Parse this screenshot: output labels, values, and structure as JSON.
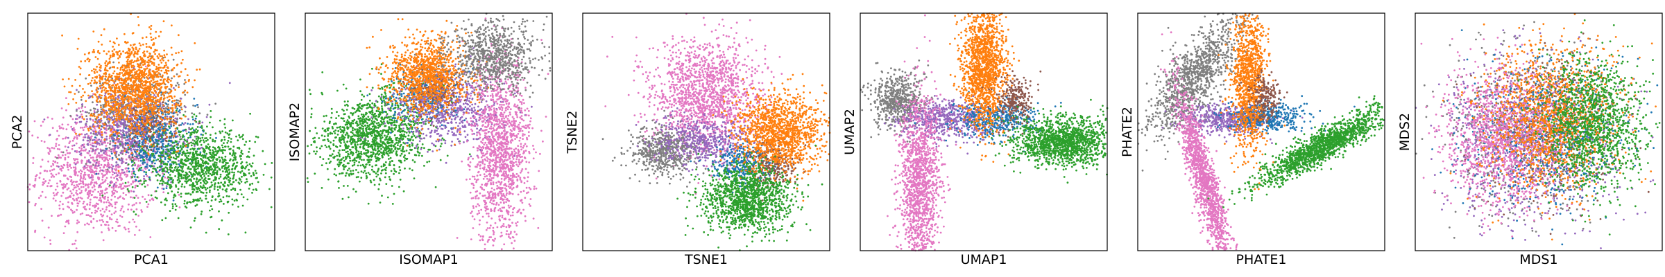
{
  "figure": {
    "background": "#ffffff"
  },
  "series_colors": {
    "blue": "#1f77b4",
    "orange": "#ff7f0e",
    "green": "#2ca02c",
    "brown": "#8c564b",
    "pink": "#e377c2",
    "gray": "#7f7f7f",
    "purple": "#9467bd"
  },
  "chart_data": [
    {
      "type": "scatter",
      "xlabel": "PCA1",
      "ylabel": "PCA2",
      "ticks": "none",
      "xlim": [
        0,
        10
      ],
      "ylim": [
        0,
        10
      ],
      "clusters": [
        {
          "color": "pink",
          "cx": 2.8,
          "cy": 3.3,
          "sx": 1.2,
          "sy": 1.3,
          "n": 1100
        },
        {
          "color": "gray",
          "cx": 4.4,
          "cy": 5.8,
          "sx": 1.0,
          "sy": 0.9,
          "n": 600
        },
        {
          "color": "purple",
          "cx": 4.2,
          "cy": 5.1,
          "sx": 1.1,
          "sy": 0.9,
          "n": 700
        },
        {
          "color": "blue",
          "cx": 5.2,
          "cy": 4.6,
          "sx": 0.8,
          "sy": 0.8,
          "n": 400
        },
        {
          "color": "green",
          "cx": 7.0,
          "cy": 3.5,
          "sx": 1.1,
          "sy": 0.8,
          "n": 1100
        },
        {
          "color": "brown",
          "cx": 5.0,
          "cy": 5.2,
          "sx": 0.6,
          "sy": 0.5,
          "n": 120
        },
        {
          "color": "orange",
          "cx": 4.3,
          "cy": 6.9,
          "sx": 0.9,
          "sy": 1.0,
          "n": 1400
        }
      ]
    },
    {
      "type": "scatter",
      "xlabel": "ISOMAP1",
      "ylabel": "ISOMAP2",
      "ticks": "none",
      "xlim": [
        0,
        10
      ],
      "ylim": [
        0,
        10
      ],
      "clusters": [
        {
          "color": "green",
          "cx": 2.8,
          "cy": 4.8,
          "sx": 1.1,
          "sy": 0.9,
          "n": 1300,
          "rot": 30
        },
        {
          "color": "blue",
          "cx": 4.8,
          "cy": 6.5,
          "sx": 0.7,
          "sy": 0.6,
          "n": 300
        },
        {
          "color": "purple",
          "cx": 5.8,
          "cy": 6.0,
          "sx": 1.1,
          "sy": 0.8,
          "n": 700
        },
        {
          "color": "pink",
          "cx": 7.9,
          "cy": 4.2,
          "sx": 0.6,
          "sy": 1.9,
          "n": 1400
        },
        {
          "color": "brown",
          "cx": 5.2,
          "cy": 6.8,
          "sx": 0.5,
          "sy": 0.5,
          "n": 150
        },
        {
          "color": "orange",
          "cx": 5.0,
          "cy": 7.4,
          "sx": 0.8,
          "sy": 0.8,
          "n": 1100
        },
        {
          "color": "gray",
          "cx": 7.6,
          "cy": 8.2,
          "sx": 0.9,
          "sy": 0.7,
          "n": 800
        }
      ]
    },
    {
      "type": "scatter",
      "xlabel": "TSNE1",
      "ylabel": "TSNE2",
      "ticks": "none",
      "xlim": [
        0,
        10
      ],
      "ylim": [
        0,
        10
      ],
      "clusters": [
        {
          "color": "pink",
          "cx": 5.0,
          "cy": 6.5,
          "sx": 1.1,
          "sy": 1.2,
          "n": 1500
        },
        {
          "color": "gray",
          "cx": 3.3,
          "cy": 4.2,
          "sx": 0.7,
          "sy": 0.5,
          "n": 600
        },
        {
          "color": "purple",
          "cx": 5.0,
          "cy": 4.6,
          "sx": 1.0,
          "sy": 0.5,
          "n": 500
        },
        {
          "color": "blue",
          "cx": 6.5,
          "cy": 3.6,
          "sx": 0.6,
          "sy": 0.4,
          "n": 300
        },
        {
          "color": "brown",
          "cx": 7.7,
          "cy": 3.6,
          "sx": 0.5,
          "sy": 0.5,
          "n": 250
        },
        {
          "color": "orange",
          "cx": 8.0,
          "cy": 5.0,
          "sx": 0.9,
          "sy": 0.8,
          "n": 1300
        },
        {
          "color": "green",
          "cx": 6.6,
          "cy": 2.2,
          "sx": 0.9,
          "sy": 0.7,
          "n": 1300
        }
      ]
    },
    {
      "type": "scatter",
      "xlabel": "UMAP1",
      "ylabel": "UMAP2",
      "ticks": "none",
      "xlim": [
        0,
        10
      ],
      "ylim": [
        0,
        10
      ],
      "clusters": [
        {
          "color": "gray",
          "cx": 1.5,
          "cy": 6.3,
          "sx": 0.5,
          "sy": 0.6,
          "n": 600
        },
        {
          "color": "purple",
          "cx": 3.6,
          "cy": 5.5,
          "sx": 1.0,
          "sy": 0.4,
          "n": 600
        },
        {
          "color": "blue",
          "cx": 5.5,
          "cy": 5.5,
          "sx": 0.8,
          "sy": 0.4,
          "n": 400
        },
        {
          "color": "pink",
          "cx": 2.4,
          "cy": 2.8,
          "sx": 0.4,
          "sy": 1.9,
          "n": 1400
        },
        {
          "color": "orange",
          "cx": 5.0,
          "cy": 7.8,
          "sx": 0.45,
          "sy": 1.3,
          "n": 1500
        },
        {
          "color": "brown",
          "cx": 6.3,
          "cy": 6.3,
          "sx": 0.35,
          "sy": 0.5,
          "n": 250
        },
        {
          "color": "green",
          "cx": 8.2,
          "cy": 4.6,
          "sx": 1.0,
          "sy": 0.5,
          "n": 1400
        }
      ]
    },
    {
      "type": "scatter",
      "xlabel": "PHATE1",
      "ylabel": "PHATE2",
      "ticks": "none",
      "xlim": [
        0,
        10
      ],
      "ylim": [
        0,
        10
      ],
      "clusters": [
        {
          "color": "gray",
          "cx": 2.3,
          "cy": 7.3,
          "sx": 0.5,
          "sy": 1.5,
          "n": 1100,
          "rot": -35
        },
        {
          "color": "purple",
          "cx": 3.6,
          "cy": 5.5,
          "sx": 0.9,
          "sy": 0.3,
          "n": 500
        },
        {
          "color": "blue",
          "cx": 5.3,
          "cy": 5.6,
          "sx": 0.8,
          "sy": 0.3,
          "n": 400
        },
        {
          "color": "pink",
          "cx": 2.7,
          "cy": 3.0,
          "sx": 0.25,
          "sy": 2.0,
          "n": 1400,
          "rot": 15
        },
        {
          "color": "orange",
          "cx": 4.5,
          "cy": 7.2,
          "sx": 0.35,
          "sy": 1.5,
          "n": 1100
        },
        {
          "color": "brown",
          "cx": 5.2,
          "cy": 6.5,
          "sx": 0.3,
          "sy": 0.5,
          "n": 200
        },
        {
          "color": "green",
          "cx": 7.5,
          "cy": 4.4,
          "sx": 1.5,
          "sy": 0.3,
          "n": 1500,
          "rot": 30
        }
      ]
    },
    {
      "type": "scatter",
      "xlabel": "MDS1",
      "ylabel": "MDS2",
      "ticks": "none",
      "xlim": [
        0,
        10
      ],
      "ylim": [
        0,
        10
      ],
      "clusters": [
        {
          "color": "gray",
          "cx": 4.5,
          "cy": 5.0,
          "sx": 1.7,
          "sy": 1.7,
          "n": 700
        },
        {
          "color": "purple",
          "cx": 4.8,
          "cy": 4.8,
          "sx": 1.7,
          "sy": 1.7,
          "n": 800
        },
        {
          "color": "blue",
          "cx": 5.2,
          "cy": 5.0,
          "sx": 1.6,
          "sy": 1.6,
          "n": 600
        },
        {
          "color": "brown",
          "cx": 5.5,
          "cy": 5.2,
          "sx": 1.4,
          "sy": 1.4,
          "n": 300
        },
        {
          "color": "pink",
          "cx": 3.5,
          "cy": 4.7,
          "sx": 1.2,
          "sy": 1.4,
          "n": 1300
        },
        {
          "color": "orange",
          "cx": 5.5,
          "cy": 5.5,
          "sx": 1.3,
          "sy": 1.5,
          "n": 1300
        },
        {
          "color": "green",
          "cx": 7.2,
          "cy": 5.3,
          "sx": 1.0,
          "sy": 1.4,
          "n": 1300
        }
      ]
    }
  ]
}
